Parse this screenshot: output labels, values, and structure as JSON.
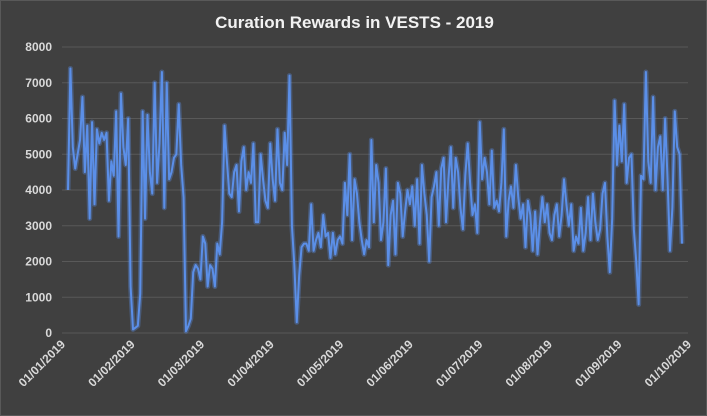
{
  "chart_data": {
    "type": "line",
    "title": "Curation Rewards in VESTS - 2019",
    "xlabel": "",
    "ylabel": "",
    "ylim": [
      0,
      8000
    ],
    "yticks": [
      0,
      1000,
      2000,
      3000,
      4000,
      5000,
      6000,
      7000,
      8000
    ],
    "grid": true,
    "legend": "none",
    "x_start": "01/01/2019",
    "x_end": "01/10/2019",
    "xtick_labels": [
      "01/01/2019",
      "01/02/2019",
      "01/03/2019",
      "01/04/2019",
      "01/05/2019",
      "01/06/2019",
      "01/07/2019",
      "01/08/2019",
      "01/09/2019",
      "01/10/2019"
    ],
    "colors": {
      "line": "#5b8fe8",
      "background": "#404040",
      "grid": "#595959",
      "text": "#d9d9d9"
    },
    "series": [
      {
        "values": [
          4000,
          7400,
          5200,
          4600,
          5000,
          5400,
          6600,
          4500,
          5800,
          3200,
          5900,
          3600,
          5700,
          5300,
          5600,
          5400,
          5600,
          3700,
          4800,
          4400,
          6200,
          2700,
          6700,
          5200,
          4700,
          6000,
          1300,
          100,
          150,
          200,
          1100,
          6200,
          3200,
          6100,
          4500,
          3900,
          7000,
          4200,
          5300,
          7300,
          3500,
          7000,
          4300,
          4500,
          4900,
          5000,
          6400,
          4700,
          3800,
          50,
          200,
          400,
          1700,
          1900,
          1800,
          1500,
          2700,
          2500,
          1300,
          1900,
          1800,
          1300,
          2500,
          2200,
          3100,
          5800,
          4800,
          3900,
          3800,
          4500,
          4700,
          3400,
          4800,
          5200,
          4000,
          4500,
          4200,
          5300,
          3100,
          3100,
          5000,
          4300,
          3700,
          3500,
          5300,
          4300,
          3700,
          5700,
          4200,
          4000,
          5600,
          4700,
          7200,
          3000,
          1900,
          300,
          1600,
          2400,
          2500,
          2500,
          2300,
          3600,
          2300,
          2600,
          2800,
          2400,
          3300,
          2700,
          2800,
          2100,
          2800,
          2200,
          2600,
          2700,
          2500,
          4200,
          3300,
          5000,
          2600,
          4300,
          3900,
          3100,
          2600,
          2200,
          2600,
          2400,
          5400,
          3100,
          4700,
          4200,
          2600,
          3100,
          4600,
          1900,
          3300,
          3700,
          2200,
          4200,
          3900,
          2700,
          3400,
          4000,
          3600,
          4100,
          3000,
          4300,
          2500,
          4700,
          3900,
          3300,
          2000,
          3800,
          4100,
          4500,
          3000,
          4600,
          4900,
          3100,
          4300,
          5200,
          3500,
          4900,
          4500,
          3500,
          2900,
          4400,
          5300,
          4200,
          3300,
          3600,
          2800,
          5900,
          4300,
          4900,
          4500,
          3600,
          5100,
          3500,
          3700,
          3400,
          4200,
          5700,
          2700,
          3700,
          4100,
          3500,
          4700,
          3800,
          3200,
          3600,
          2400,
          3700,
          3300,
          2300,
          3400,
          2200,
          3100,
          3800,
          3100,
          3600,
          2800,
          2600,
          3300,
          3600,
          2700,
          3300,
          4300,
          3600,
          3000,
          3600,
          2300,
          2700,
          2500,
          3500,
          2300,
          2800,
          3800,
          2600,
          3900,
          3100,
          2600,
          2900,
          3900,
          4200,
          2700,
          1700,
          3200,
          6500,
          4700,
          5800,
          4800,
          6400,
          4200,
          4900,
          5000,
          2900,
          2000,
          800,
          4400,
          4300,
          7300,
          4800,
          4200,
          6600,
          4000,
          5200,
          5500,
          4000,
          6000,
          4300,
          2300,
          3500,
          6200,
          5200,
          5000,
          2500
        ]
      }
    ]
  }
}
